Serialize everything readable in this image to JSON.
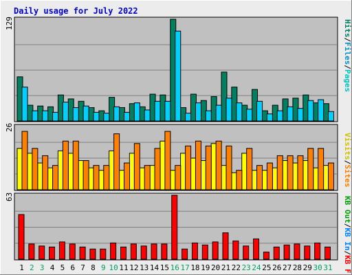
{
  "title": "Daily usage for July 2022",
  "colors": {
    "background": "#ececec",
    "plot_bg": "#c0c0c0",
    "grid": "#808080",
    "title": "#0000cc",
    "hits": "#008060",
    "files": "#00d0ff",
    "pages": "#00c0c0",
    "visits": "#ffff00",
    "sites": "#ff8000",
    "kb_in": "#0080ff",
    "kb_out": "#00a000",
    "kb_f": "#ff0000",
    "weekday": "#000000",
    "weekend": "#00a060"
  },
  "legends": {
    "panel1": [
      {
        "text": "Hits",
        "color": "#008060"
      },
      {
        "text": "/",
        "color": "#000000"
      },
      {
        "text": "Files",
        "color": "#0090c0"
      },
      {
        "text": "/",
        "color": "#000000"
      },
      {
        "text": "Pages",
        "color": "#00c0c0"
      }
    ],
    "panel2": [
      {
        "text": "Visits",
        "color": "#d0c000"
      },
      {
        "text": "/",
        "color": "#000000"
      },
      {
        "text": "Sites",
        "color": "#ff8000"
      }
    ],
    "panel3": [
      {
        "text": "KB Out",
        "color": "#00a000"
      },
      {
        "text": "/",
        "color": "#000000"
      },
      {
        "text": "KB In",
        "color": "#0080ff"
      },
      {
        "text": "/",
        "color": "#000000"
      },
      {
        "text": "KB F",
        "color": "#ff0000"
      }
    ]
  },
  "chart_data": [
    {
      "type": "bar",
      "panel": "hits-files-pages",
      "ymax_label": "129",
      "ylim": [
        0,
        129
      ],
      "series": [
        {
          "name": "Hits",
          "values": [
            56,
            20,
            19,
            18,
            33,
            28,
            25,
            17,
            13,
            30,
            17,
            22,
            18,
            34,
            33,
            129,
            17,
            34,
            26,
            31,
            62,
            43,
            20,
            40,
            13,
            20,
            28,
            29,
            33,
            23,
            22
          ]
        },
        {
          "name": "Files",
          "values": [
            43,
            13,
            13,
            11,
            24,
            17,
            19,
            11,
            10,
            18,
            11,
            23,
            14,
            25,
            25,
            114,
            10,
            23,
            13,
            20,
            29,
            23,
            15,
            25,
            9,
            13,
            18,
            16,
            26,
            27,
            12
          ]
        }
      ]
    },
    {
      "type": "bar",
      "panel": "visits-sites",
      "ymax_label": "26",
      "ylim": [
        0,
        26
      ],
      "series": [
        {
          "name": "Visits",
          "values": [
            17,
            15,
            11,
            9,
            16,
            15,
            12,
            9,
            8,
            16,
            8,
            15,
            9,
            10,
            20,
            8,
            15,
            13,
            12,
            19,
            10,
            7,
            15,
            8,
            8,
            9,
            12,
            11,
            12,
            9,
            10
          ]
        },
        {
          "name": "Sites",
          "values": [
            24,
            17,
            14,
            10,
            20,
            20,
            12,
            10,
            10,
            23,
            11,
            19,
            10,
            17,
            24,
            10,
            18,
            20,
            18,
            20,
            18,
            8,
            17,
            10,
            11,
            14,
            14,
            14,
            17,
            17,
            11
          ]
        }
      ]
    },
    {
      "type": "bar",
      "panel": "kb",
      "ymax_label": "63",
      "ylim": [
        0,
        63
      ],
      "series": [
        {
          "name": "KB F",
          "values": [
            44,
            15,
            13,
            12,
            17,
            15,
            12,
            10,
            10,
            16,
            12,
            15,
            13,
            15,
            15,
            63,
            10,
            16,
            14,
            17,
            26,
            18,
            13,
            20,
            7,
            12,
            14,
            15,
            13,
            16,
            12
          ]
        }
      ]
    }
  ],
  "days": [
    "1",
    "2",
    "3",
    "4",
    "5",
    "6",
    "7",
    "8",
    "9",
    "10",
    "11",
    "12",
    "13",
    "14",
    "15",
    "16",
    "17",
    "18",
    "19",
    "20",
    "21",
    "22",
    "23",
    "24",
    "25",
    "26",
    "27",
    "28",
    "29",
    "30",
    "31"
  ],
  "weekends": [
    2,
    3,
    9,
    10,
    16,
    17,
    23,
    24,
    30,
    31
  ]
}
